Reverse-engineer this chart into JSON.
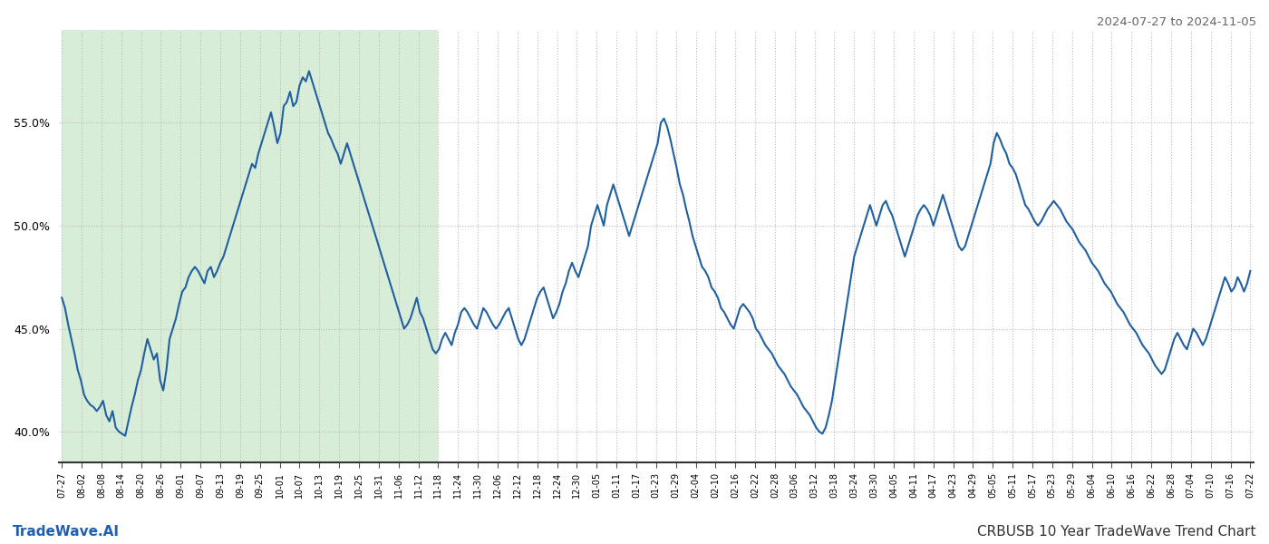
{
  "title_right": "2024-07-27 to 2024-11-05",
  "footer_left": "TradeWave.AI",
  "footer_right": "CRBUSB 10 Year TradeWave Trend Chart",
  "background_color": "#ffffff",
  "line_color": "#2060a0",
  "highlight_color": "#d8edd8",
  "highlight_alpha": 1.0,
  "ylim": [
    38.5,
    59.5
  ],
  "yticks": [
    40.0,
    45.0,
    50.0,
    55.0
  ],
  "x_labels": [
    "07-27",
    "08-02",
    "08-08",
    "08-14",
    "08-20",
    "08-26",
    "09-01",
    "09-07",
    "09-13",
    "09-19",
    "09-25",
    "10-01",
    "10-07",
    "10-13",
    "10-19",
    "10-25",
    "10-31",
    "11-06",
    "11-12",
    "11-18",
    "11-24",
    "11-30",
    "12-06",
    "12-12",
    "12-18",
    "12-24",
    "12-30",
    "01-05",
    "01-11",
    "01-17",
    "01-23",
    "01-29",
    "02-04",
    "02-10",
    "02-16",
    "02-22",
    "02-28",
    "03-06",
    "03-12",
    "03-18",
    "03-24",
    "03-30",
    "04-05",
    "04-11",
    "04-17",
    "04-23",
    "04-29",
    "05-05",
    "05-11",
    "05-17",
    "05-23",
    "05-29",
    "06-04",
    "06-10",
    "06-16",
    "06-22",
    "06-28",
    "07-04",
    "07-10",
    "07-16",
    "07-22"
  ],
  "highlight_start_label": "07-27",
  "highlight_end_label": "11-18",
  "line_width": 1.5,
  "grid_color": "#bbbbbb",
  "grid_style": ":",
  "figure_width": 14.0,
  "figure_height": 6.0,
  "dpi": 100,
  "y_values": [
    46.5,
    46.0,
    45.2,
    44.5,
    43.8,
    43.0,
    42.5,
    41.8,
    41.5,
    41.3,
    41.2,
    41.0,
    41.2,
    41.5,
    40.8,
    40.5,
    41.0,
    40.2,
    40.0,
    39.9,
    39.8,
    40.5,
    41.2,
    41.8,
    42.5,
    43.0,
    43.8,
    44.5,
    44.0,
    43.5,
    43.8,
    42.5,
    42.0,
    43.0,
    44.5,
    45.0,
    45.5,
    46.2,
    46.8,
    47.0,
    47.5,
    47.8,
    48.0,
    47.8,
    47.5,
    47.2,
    47.8,
    48.0,
    47.5,
    47.8,
    48.2,
    48.5,
    49.0,
    49.5,
    50.0,
    50.5,
    51.0,
    51.5,
    52.0,
    52.5,
    53.0,
    52.8,
    53.5,
    54.0,
    54.5,
    55.0,
    55.5,
    54.8,
    54.0,
    54.5,
    55.8,
    56.0,
    56.5,
    55.8,
    56.0,
    56.8,
    57.2,
    57.0,
    57.5,
    57.0,
    56.5,
    56.0,
    55.5,
    55.0,
    54.5,
    54.2,
    53.8,
    53.5,
    53.0,
    53.5,
    54.0,
    53.5,
    53.0,
    52.5,
    52.0,
    51.5,
    51.0,
    50.5,
    50.0,
    49.5,
    49.0,
    48.5,
    48.0,
    47.5,
    47.0,
    46.5,
    46.0,
    45.5,
    45.0,
    45.2,
    45.5,
    46.0,
    46.5,
    45.8,
    45.5,
    45.0,
    44.5,
    44.0,
    43.8,
    44.0,
    44.5,
    44.8,
    44.5,
    44.2,
    44.8,
    45.2,
    45.8,
    46.0,
    45.8,
    45.5,
    45.2,
    45.0,
    45.5,
    46.0,
    45.8,
    45.5,
    45.2,
    45.0,
    45.2,
    45.5,
    45.8,
    46.0,
    45.5,
    45.0,
    44.5,
    44.2,
    44.5,
    45.0,
    45.5,
    46.0,
    46.5,
    46.8,
    47.0,
    46.5,
    46.0,
    45.5,
    45.8,
    46.2,
    46.8,
    47.2,
    47.8,
    48.2,
    47.8,
    47.5,
    48.0,
    48.5,
    49.0,
    50.0,
    50.5,
    51.0,
    50.5,
    50.0,
    51.0,
    51.5,
    52.0,
    51.5,
    51.0,
    50.5,
    50.0,
    49.5,
    50.0,
    50.5,
    51.0,
    51.5,
    52.0,
    52.5,
    53.0,
    53.5,
    54.0,
    55.0,
    55.2,
    54.8,
    54.2,
    53.5,
    52.8,
    52.0,
    51.5,
    50.8,
    50.2,
    49.5,
    49.0,
    48.5,
    48.0,
    47.8,
    47.5,
    47.0,
    46.8,
    46.5,
    46.0,
    45.8,
    45.5,
    45.2,
    45.0,
    45.5,
    46.0,
    46.2,
    46.0,
    45.8,
    45.5,
    45.0,
    44.8,
    44.5,
    44.2,
    44.0,
    43.8,
    43.5,
    43.2,
    43.0,
    42.8,
    42.5,
    42.2,
    42.0,
    41.8,
    41.5,
    41.2,
    41.0,
    40.8,
    40.5,
    40.2,
    40.0,
    39.9,
    40.2,
    40.8,
    41.5,
    42.5,
    43.5,
    44.5,
    45.5,
    46.5,
    47.5,
    48.5,
    49.0,
    49.5,
    50.0,
    50.5,
    51.0,
    50.5,
    50.0,
    50.5,
    51.0,
    51.2,
    50.8,
    50.5,
    50.0,
    49.5,
    49.0,
    48.5,
    49.0,
    49.5,
    50.0,
    50.5,
    50.8,
    51.0,
    50.8,
    50.5,
    50.0,
    50.5,
    51.0,
    51.5,
    51.0,
    50.5,
    50.0,
    49.5,
    49.0,
    48.8,
    49.0,
    49.5,
    50.0,
    50.5,
    51.0,
    51.5,
    52.0,
    52.5,
    53.0,
    54.0,
    54.5,
    54.2,
    53.8,
    53.5,
    53.0,
    52.8,
    52.5,
    52.0,
    51.5,
    51.0,
    50.8,
    50.5,
    50.2,
    50.0,
    50.2,
    50.5,
    50.8,
    51.0,
    51.2,
    51.0,
    50.8,
    50.5,
    50.2,
    50.0,
    49.8,
    49.5,
    49.2,
    49.0,
    48.8,
    48.5,
    48.2,
    48.0,
    47.8,
    47.5,
    47.2,
    47.0,
    46.8,
    46.5,
    46.2,
    46.0,
    45.8,
    45.5,
    45.2,
    45.0,
    44.8,
    44.5,
    44.2,
    44.0,
    43.8,
    43.5,
    43.2,
    43.0,
    42.8,
    43.0,
    43.5,
    44.0,
    44.5,
    44.8,
    44.5,
    44.2,
    44.0,
    44.5,
    45.0,
    44.8,
    44.5,
    44.2,
    44.5,
    45.0,
    45.5,
    46.0,
    46.5,
    47.0,
    47.5,
    47.2,
    46.8,
    47.0,
    47.5,
    47.2,
    46.8,
    47.2,
    47.8
  ]
}
